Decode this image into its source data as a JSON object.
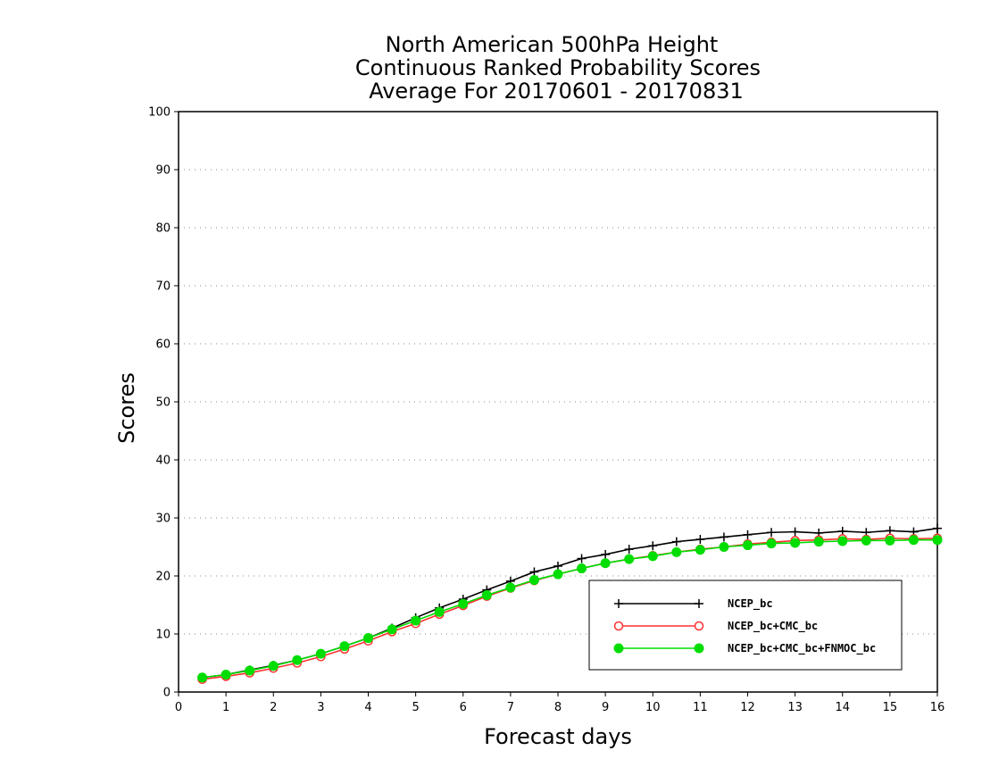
{
  "chart_data": {
    "type": "line",
    "title_lines": [
      "North American 500hPa Height",
      "Continuous Ranked Probability Scores",
      "Average For 20170601 - 20170831"
    ],
    "xlabel": "Forecast days",
    "ylabel": "Scores",
    "xlim": [
      0,
      16
    ],
    "ylim": [
      0,
      100
    ],
    "xticks": [
      0,
      1,
      2,
      3,
      4,
      5,
      6,
      7,
      8,
      9,
      10,
      11,
      12,
      13,
      14,
      15,
      16
    ],
    "yticks": [
      0,
      10,
      20,
      30,
      40,
      50,
      60,
      70,
      80,
      90,
      100
    ],
    "grid": "horizontal-dotted",
    "legend_position": "lower-right",
    "x": [
      0.5,
      1,
      1.5,
      2,
      2.5,
      3,
      3.5,
      4,
      4.5,
      5,
      5.5,
      6,
      6.5,
      7,
      7.5,
      8,
      8.5,
      9,
      9.5,
      10,
      10.5,
      11,
      11.5,
      12,
      12.5,
      13,
      13.5,
      14,
      14.5,
      15,
      15.5,
      16
    ],
    "series": [
      {
        "name": "NCEP_bc",
        "color": "#000000",
        "marker": "plus",
        "values": [
          2.5,
          3.0,
          3.8,
          4.6,
          5.5,
          6.6,
          7.9,
          9.3,
          11.0,
          12.8,
          14.5,
          16.0,
          17.6,
          19.1,
          20.7,
          21.7,
          23.0,
          23.7,
          24.6,
          25.2,
          25.9,
          26.3,
          26.7,
          27.1,
          27.5,
          27.6,
          27.4,
          27.7,
          27.5,
          27.8,
          27.6,
          28.2
        ]
      },
      {
        "name": "NCEP_bc+CMC_bc",
        "color": "#ff3030",
        "marker": "open-circle",
        "values": [
          2.2,
          2.7,
          3.3,
          4.1,
          5.0,
          6.1,
          7.4,
          8.8,
          10.4,
          11.8,
          13.4,
          14.9,
          16.5,
          17.9,
          19.2,
          20.3,
          21.3,
          22.2,
          22.9,
          23.5,
          24.1,
          24.6,
          25.0,
          25.5,
          25.8,
          26.1,
          26.2,
          26.4,
          26.3,
          26.5,
          26.4,
          26.5
        ]
      },
      {
        "name": "NCEP_bc+CMC_bc+FNMOC_bc",
        "color": "#00dd00",
        "marker": "filled-circle",
        "values": [
          2.5,
          3.0,
          3.7,
          4.5,
          5.5,
          6.6,
          7.9,
          9.3,
          10.8,
          12.3,
          13.8,
          15.2,
          16.7,
          18.0,
          19.3,
          20.3,
          21.3,
          22.2,
          22.9,
          23.4,
          24.1,
          24.5,
          25.0,
          25.3,
          25.6,
          25.7,
          25.9,
          26.0,
          26.1,
          26.1,
          26.2,
          26.2
        ]
      }
    ]
  }
}
